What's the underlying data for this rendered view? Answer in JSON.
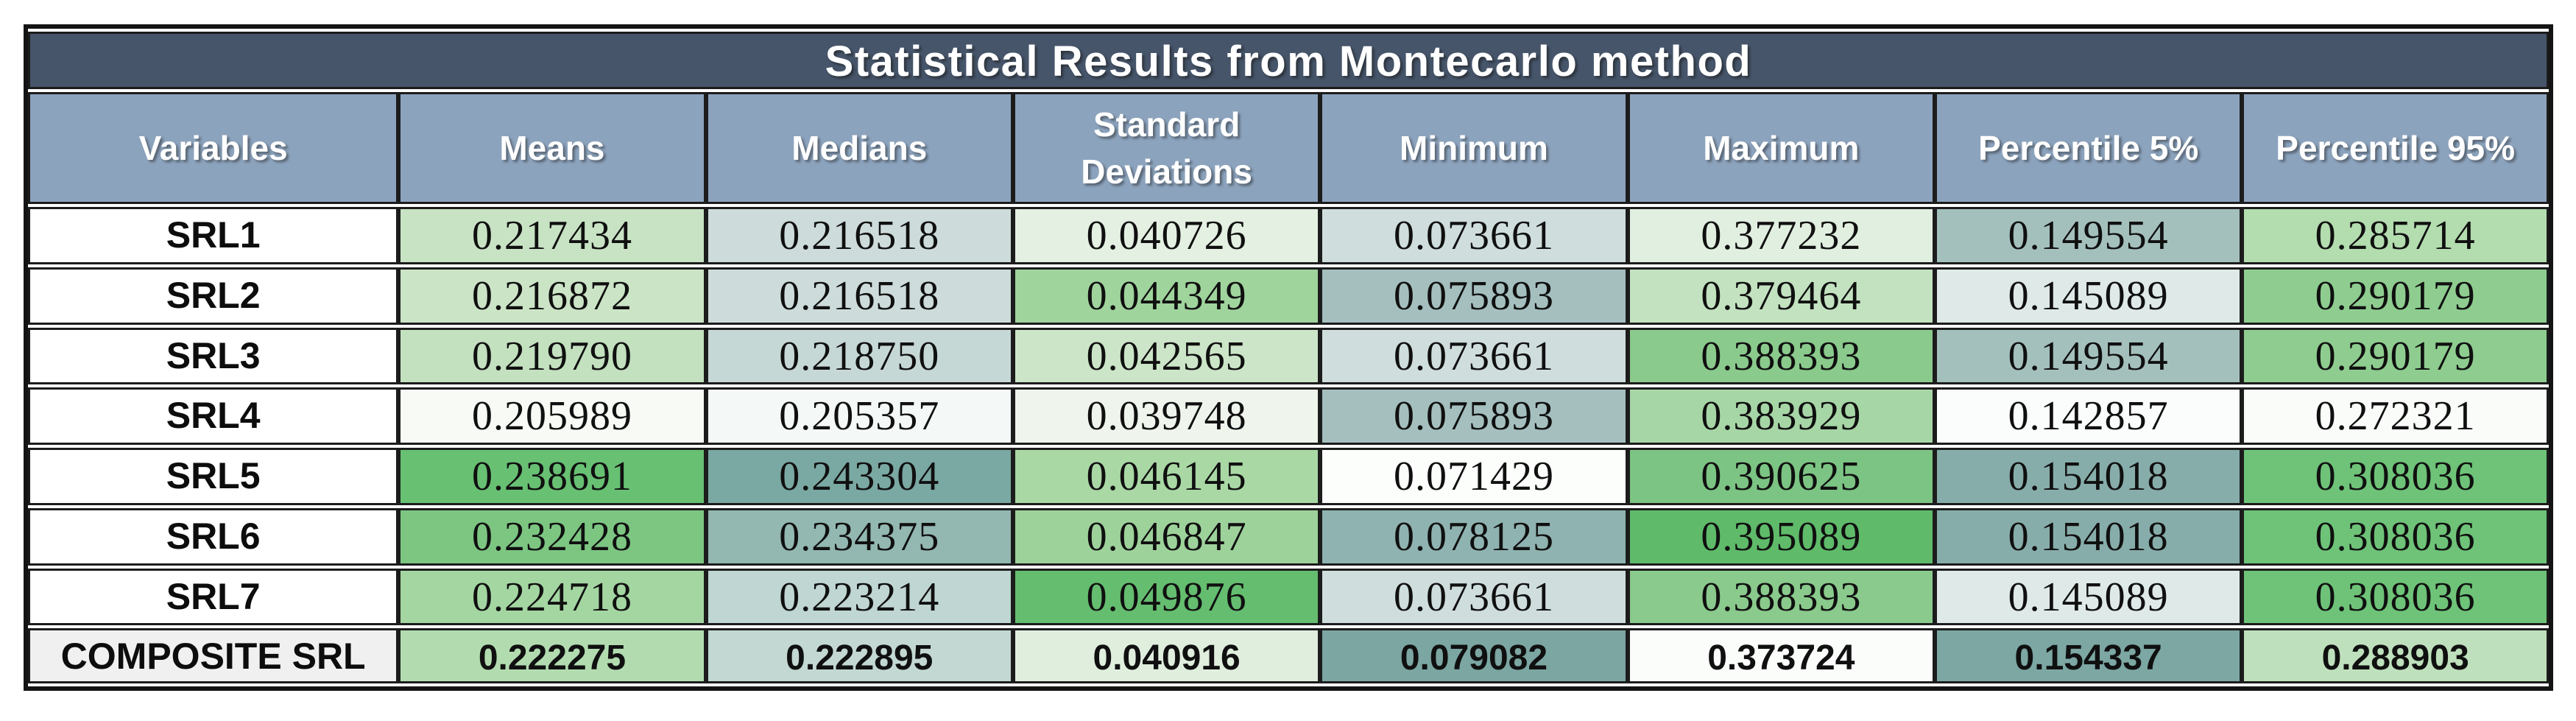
{
  "chart_data": {
    "type": "table",
    "title": "Statistical Results from Montecarlo method",
    "columns": [
      "Variables",
      "Means",
      "Medians",
      "Standard Deviations",
      "Minimum",
      "Maximum",
      "Percentile 5%",
      "Percentile 95%"
    ],
    "rows": [
      {
        "label": "SRL1",
        "bold": false,
        "label_bg": "#ffffff",
        "values": [
          "0.217434",
          "0.216518",
          "0.040726",
          "0.073661",
          "0.377232",
          "0.149554",
          "0.285714"
        ],
        "cell_colors": [
          "#c8e3c4",
          "#cddcda",
          "#e4f0e2",
          "#cfdddd",
          "#e1efe0",
          "#a4c0bd",
          "#b3dcaf"
        ]
      },
      {
        "label": "SRL2",
        "bold": false,
        "label_bg": "#ffffff",
        "values": [
          "0.216872",
          "0.216518",
          "0.044349",
          "0.075893",
          "0.379464",
          "0.145089",
          "0.290179"
        ],
        "cell_colors": [
          "#cbe4c6",
          "#cddcda",
          "#a0d49d",
          "#a5bfbf",
          "#c3e2c0",
          "#dfe9e8",
          "#8ecd8f"
        ]
      },
      {
        "label": "SRL3",
        "bold": false,
        "label_bg": "#ffffff",
        "values": [
          "0.219790",
          "0.218750",
          "0.042565",
          "0.073661",
          "0.388393",
          "0.149554",
          "0.290179"
        ],
        "cell_colors": [
          "#c3e0bf",
          "#c6d8d5",
          "#cce5c8",
          "#cfdddd",
          "#8aca8c",
          "#a4c0bd",
          "#8ecd8f"
        ]
      },
      {
        "label": "SRL4",
        "bold": false,
        "label_bg": "#ffffff",
        "values": [
          "0.205989",
          "0.205357",
          "0.039748",
          "0.075893",
          "0.383929",
          "0.142857",
          "0.272321"
        ],
        "cell_colors": [
          "#f7faf5",
          "#f4f8f7",
          "#eff5ec",
          "#a5bfbf",
          "#a7d6a6",
          "#fbfdfd",
          "#fafcfa"
        ]
      },
      {
        "label": "SRL5",
        "bold": false,
        "label_bg": "#ffffff",
        "values": [
          "0.238691",
          "0.243304",
          "0.046145",
          "0.071429",
          "0.390625",
          "0.154018",
          "0.308036"
        ],
        "cell_colors": [
          "#68c073",
          "#7aa8a2",
          "#a9d8a5",
          "#fcfefc",
          "#7cc483",
          "#87adaa",
          "#6ec378"
        ]
      },
      {
        "label": "SRL6",
        "bold": false,
        "label_bg": "#ffffff",
        "values": [
          "0.232428",
          "0.234375",
          "0.046847",
          "0.078125",
          "0.395089",
          "0.154018",
          "0.308036"
        ],
        "cell_colors": [
          "#7cc682",
          "#93b7b1",
          "#9ed29b",
          "#8fb3b0",
          "#5fbb6a",
          "#87adaa",
          "#6ec378"
        ]
      },
      {
        "label": "SRL7",
        "bold": false,
        "label_bg": "#ffffff",
        "values": [
          "0.224718",
          "0.223214",
          "0.049876",
          "0.073661",
          "0.388393",
          "0.145089",
          "0.308036"
        ],
        "cell_colors": [
          "#a4d6a2",
          "#bfd6d2",
          "#65bd6f",
          "#cfdddd",
          "#8aca8c",
          "#dfe9e8",
          "#6ec378"
        ]
      },
      {
        "label": "COMPOSITE SRL",
        "bold": true,
        "label_bg": "#f0f0f0",
        "values": [
          "0.222275",
          "0.222895",
          "0.040916",
          "0.079082",
          "0.373724",
          "0.154337",
          "0.288903"
        ],
        "cell_colors": [
          "#b2dcb0",
          "#c3d8d3",
          "#e0eede",
          "#7ba6a2",
          "#fbfdfb",
          "#7ca7a3",
          "#bfe0bc"
        ]
      }
    ]
  },
  "style": {
    "title_bg": "#46556a",
    "header_bg": "#8ca3bd",
    "header_text": "#ffffff",
    "grid_color": "#1c1c1c",
    "outer_border": "#141414",
    "scale_green_high": "#5fbb6a",
    "scale_teal_high": "#7aa8a2",
    "scale_low": "#ffffff"
  }
}
